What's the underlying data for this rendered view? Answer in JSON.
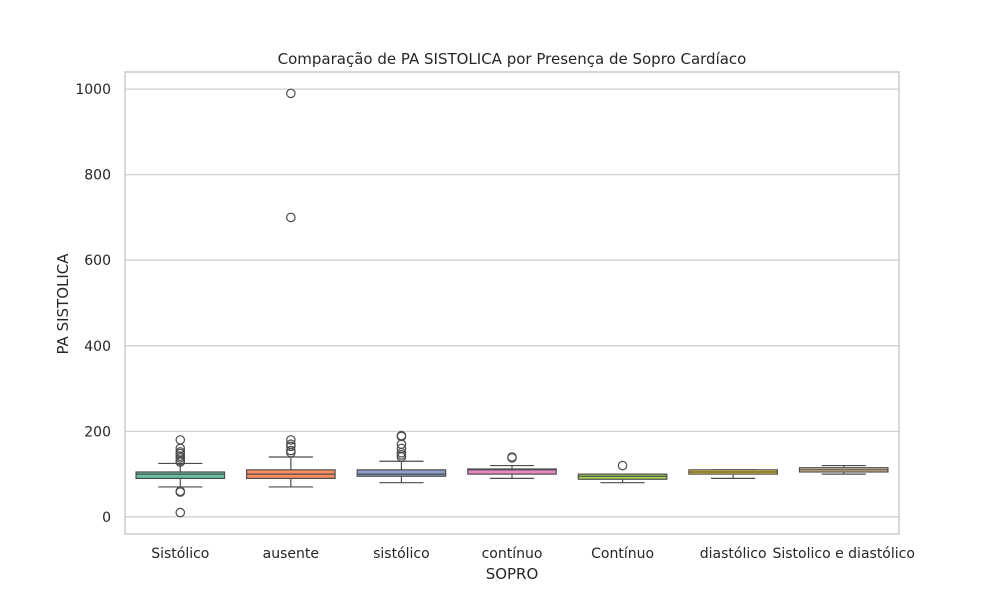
{
  "chart_data": {
    "type": "box",
    "title": "Comparação de PA SISTOLICA por Presença de Sopro Cardíaco",
    "xlabel": "SOPRO",
    "ylabel": "PA SISTOLICA",
    "ylim": [
      -40,
      1040
    ],
    "yticks": [
      0,
      200,
      400,
      600,
      800,
      1000
    ],
    "grid": true,
    "categories": [
      "Sistólico",
      "ausente",
      "sistólico",
      "contínuo",
      "Contínuo",
      "diastólico",
      "Sistolico e diastólico"
    ],
    "boxes": [
      {
        "category": "Sistólico",
        "color": "#66c2a5",
        "whisker_low": 70,
        "q1": 90,
        "median": 100,
        "q3": 105,
        "whisker_high": 125,
        "outliers": [
          180,
          160,
          152,
          148,
          142,
          138,
          132,
          128,
          60,
          58,
          10
        ]
      },
      {
        "category": "ausente",
        "color": "#fc8d62",
        "whisker_low": 70,
        "q1": 90,
        "median": 100,
        "q3": 110,
        "whisker_high": 140,
        "outliers": [
          990,
          700,
          180,
          170,
          165,
          155,
          150
        ]
      },
      {
        "category": "sistólico",
        "color": "#8da0cb",
        "whisker_low": 80,
        "q1": 95,
        "median": 100,
        "q3": 110,
        "whisker_high": 130,
        "outliers": [
          190,
          188,
          170,
          160,
          150,
          145,
          140
        ]
      },
      {
        "category": "contínuo",
        "color": "#e78ac3",
        "whisker_low": 90,
        "q1": 100,
        "median": 110,
        "q3": 112,
        "whisker_high": 120,
        "outliers": [
          140,
          138
        ]
      },
      {
        "category": "Contínuo",
        "color": "#a6d854",
        "whisker_low": 80,
        "q1": 88,
        "median": 95,
        "q3": 100,
        "whisker_high": 100,
        "outliers": [
          120
        ]
      },
      {
        "category": "diastólico",
        "color": "#ffd92f",
        "whisker_low": 90,
        "q1": 100,
        "median": 105,
        "q3": 110,
        "whisker_high": 110,
        "outliers": []
      },
      {
        "category": "Sistolico e diastólico",
        "color": "#e5c494",
        "whisker_low": 100,
        "q1": 105,
        "median": 110,
        "q3": 115,
        "whisker_high": 120,
        "outliers": []
      }
    ]
  }
}
